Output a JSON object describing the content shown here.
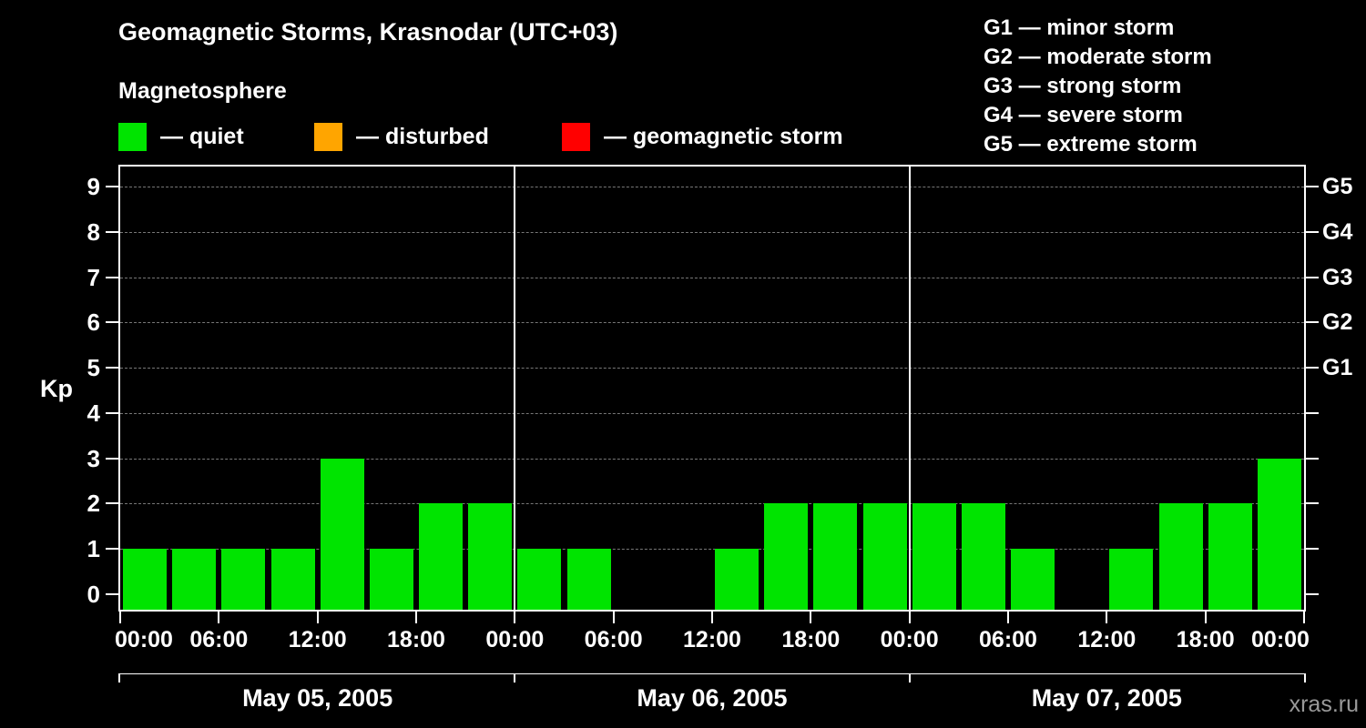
{
  "page": {
    "title": "Geomagnetic Storms, Krasnodar (UTC+03)",
    "subtitle": "Magnetosphere",
    "watermark": "xras.ru",
    "bg_color": "#000000",
    "text_color": "#ffffff"
  },
  "legend": {
    "items": [
      {
        "key": "quiet",
        "label": "— quiet",
        "color": "#00e400"
      },
      {
        "key": "disturbed",
        "label": "— disturbed",
        "color": "#ffa500"
      },
      {
        "key": "storm",
        "label": "— geomagnetic storm",
        "color": "#ff0000"
      }
    ]
  },
  "storm_scale": {
    "items": [
      {
        "label": "G1 — minor storm"
      },
      {
        "label": "G2 — moderate storm"
      },
      {
        "label": "G3 — strong storm"
      },
      {
        "label": "G4 — severe storm"
      },
      {
        "label": "G5 — extreme storm"
      }
    ]
  },
  "chart_data": {
    "type": "bar",
    "title": "Geomagnetic Storms, Krasnodar (UTC+03)",
    "ylabel": "Kp",
    "ylim": [
      0,
      9
    ],
    "y_ticks": [
      0,
      1,
      2,
      3,
      4,
      5,
      6,
      7,
      8,
      9
    ],
    "grid": "dashed horizontal",
    "legend_position": "top-left",
    "bar_color": "#00e400",
    "hours_per_bar": 3,
    "right_axis_labels": [
      {
        "kp": 5,
        "label": "G1"
      },
      {
        "kp": 6,
        "label": "G2"
      },
      {
        "kp": 7,
        "label": "G3"
      },
      {
        "kp": 8,
        "label": "G4"
      },
      {
        "kp": 9,
        "label": "G5"
      }
    ],
    "x_tick_labels": [
      "00:00",
      "06:00",
      "12:00",
      "18:00",
      "00:00",
      "06:00",
      "12:00",
      "18:00",
      "00:00",
      "06:00",
      "12:00",
      "18:00",
      "00:00"
    ],
    "days": [
      {
        "date": "May 05, 2005",
        "kp": [
          1,
          1,
          1,
          1,
          3,
          1,
          2,
          2
        ]
      },
      {
        "date": "May 06, 2005",
        "kp": [
          1,
          1,
          null,
          null,
          1,
          2,
          2,
          2
        ]
      },
      {
        "date": "May 07, 2005",
        "kp": [
          2,
          2,
          1,
          null,
          1,
          2,
          2,
          3
        ]
      }
    ]
  }
}
